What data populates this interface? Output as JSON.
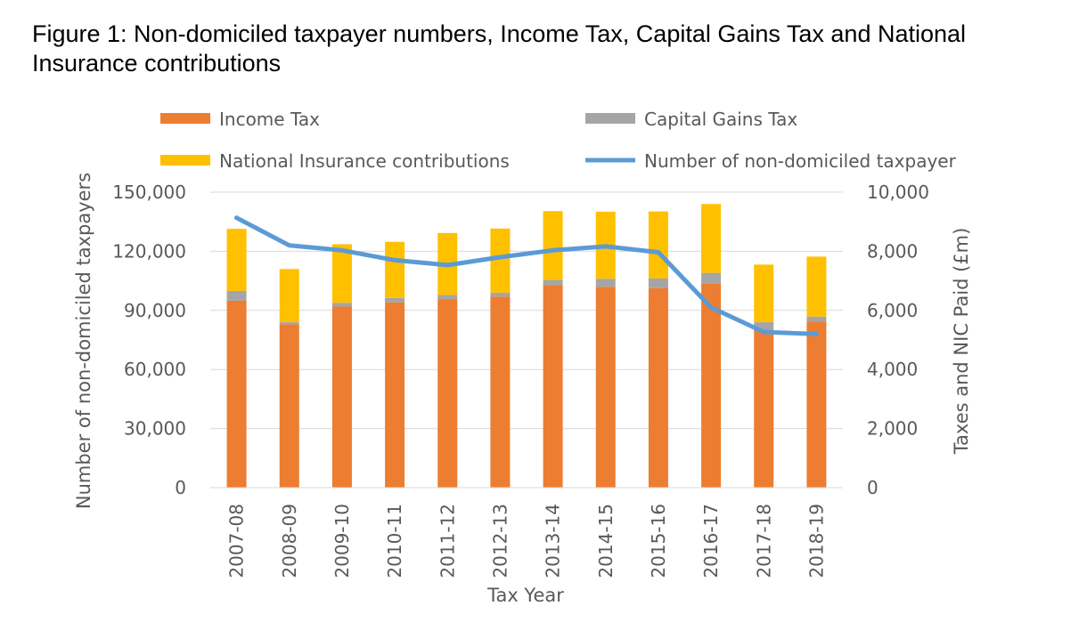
{
  "title": "Figure 1: Non-domiciled taxpayer numbers, Income Tax, Capital Gains Tax and National Insurance contributions",
  "colors": {
    "income_tax": "#ED7D31",
    "capital_gains_tax": "#A5A5A5",
    "nic": "#FFC000",
    "taxpayers": "#5B9BD5",
    "grid": "#D9D9D9",
    "text": "#595959"
  },
  "chart_data": {
    "type": "bar",
    "stacked": true,
    "categories": [
      "2007-08",
      "2008-09",
      "2009-10",
      "2010-11",
      "2011-12",
      "2012-13",
      "2013-14",
      "2014-15",
      "2015-16",
      "2016-17",
      "2017-18",
      "2018-19"
    ],
    "xlabel": "Tax Year",
    "ylabel_left": "Number of non-domiciled taxpayers",
    "ylabel_right": "Taxes and NIC Paid (£m)",
    "ylim_left": [
      0,
      150000
    ],
    "ylim_right": [
      0,
      10000
    ],
    "yticks_left": [
      "0",
      "30,000",
      "60,000",
      "90,000",
      "120,000",
      "150,000"
    ],
    "yticks_right": [
      "0",
      "2,000",
      "4,000",
      "6,000",
      "8,000",
      "10,000"
    ],
    "grid": true,
    "legend_position": "top",
    "legend": {
      "income_tax": "Income Tax",
      "capital_gains_tax": "Capital Gains Tax",
      "nic": "National Insurance contributions",
      "taxpayers": "Number of non-domiciled taxpayer"
    },
    "series": [
      {
        "name": "Income Tax",
        "axis": "right",
        "kind": "bar",
        "values": [
          6330,
          5530,
          6130,
          6270,
          6370,
          6470,
          6850,
          6800,
          6750,
          6900,
          5350,
          5620
        ]
      },
      {
        "name": "Capital Gains Tax",
        "axis": "right",
        "kind": "bar",
        "values": [
          330,
          70,
          130,
          150,
          150,
          130,
          180,
          270,
          330,
          370,
          250,
          170
        ]
      },
      {
        "name": "National Insurance contributions",
        "axis": "right",
        "kind": "bar",
        "values": [
          2100,
          1800,
          1980,
          1900,
          2100,
          2170,
          2330,
          2270,
          2270,
          2330,
          1950,
          2030
        ]
      },
      {
        "name": "Number of non-domiciled taxpayer",
        "axis": "left",
        "kind": "line",
        "values": [
          137000,
          123000,
          120500,
          115500,
          113000,
          117000,
          120500,
          122500,
          119500,
          91500,
          79000,
          78000
        ]
      }
    ]
  }
}
